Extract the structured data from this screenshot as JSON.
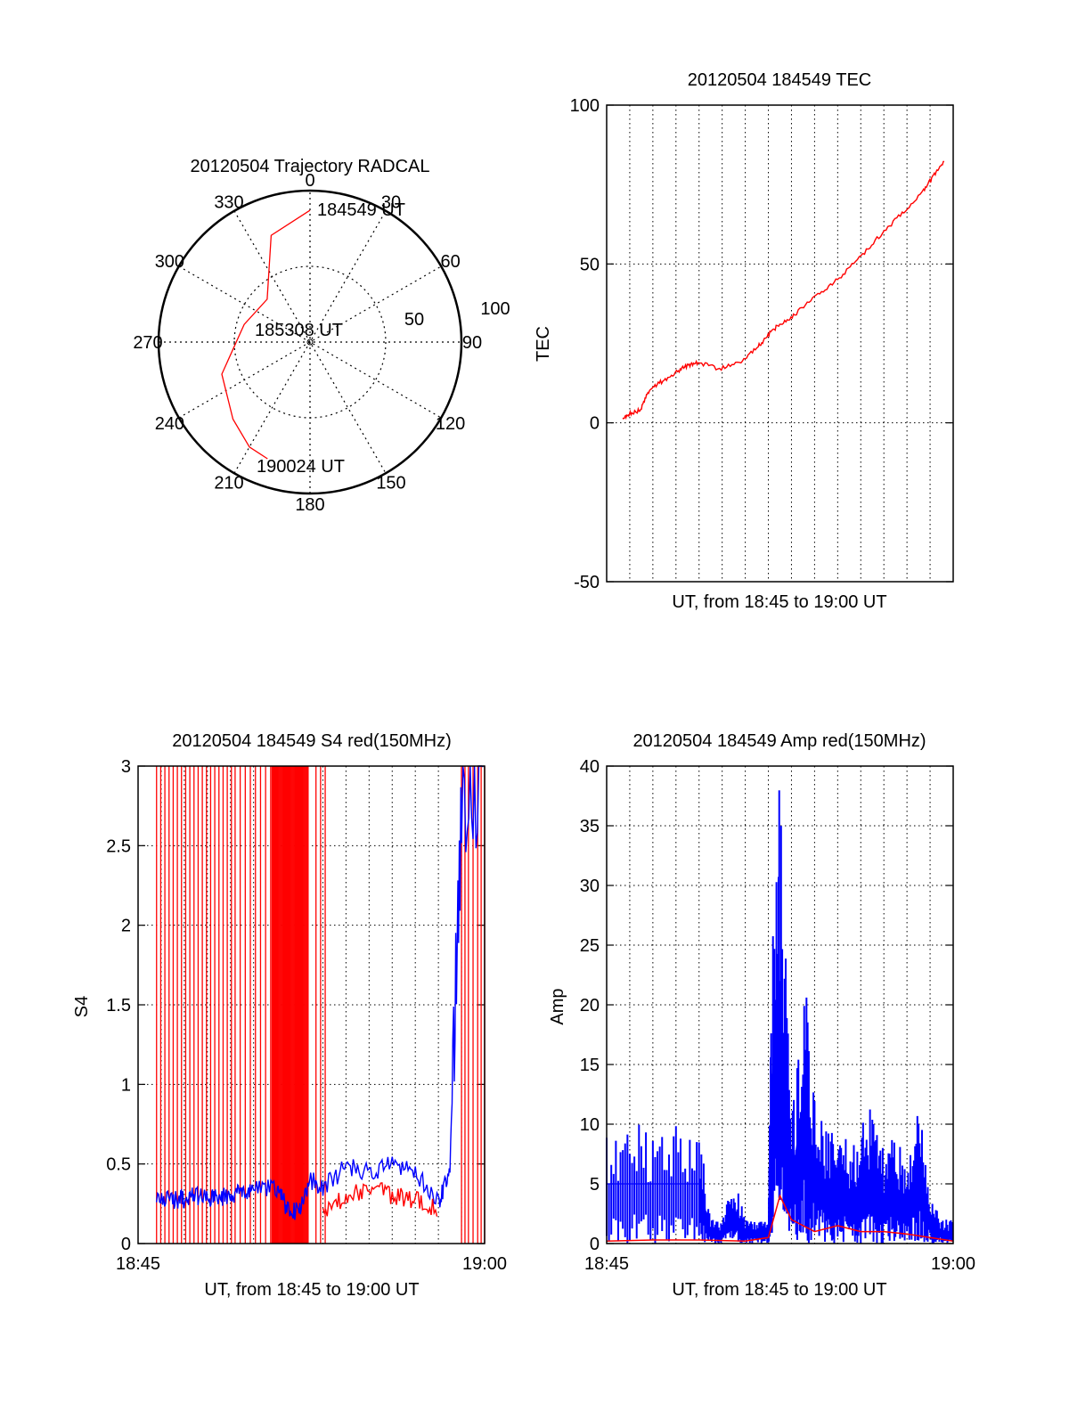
{
  "chart_data": [
    {
      "type": "polar",
      "title": "20120504 Trajectory RADCAL",
      "angle_labels": [
        "0",
        "30",
        "60",
        "90",
        "120",
        "150",
        "180",
        "210",
        "240",
        "270",
        "300",
        "330"
      ],
      "radius_labels": [
        "50",
        "100"
      ],
      "rlim": [
        0,
        100
      ],
      "grid": true,
      "trajectory": {
        "color": "#ff0000",
        "points": [
          [
            0,
            87
          ],
          [
            -20,
            75
          ],
          [
            -45,
            40
          ],
          [
            -75,
            45
          ],
          [
            -110,
            62
          ],
          [
            -135,
            72
          ],
          [
            -150,
            80
          ],
          [
            -160,
            82
          ]
        ]
      },
      "annotations": [
        {
          "text": "184549 UT",
          "azimuth": 0,
          "radius": 87
        },
        {
          "text": "185308 UT",
          "azimuth": 0,
          "radius": 0
        },
        {
          "text": "190024 UT",
          "azimuth": -160,
          "radius": 82
        }
      ]
    },
    {
      "type": "line",
      "title": "20120504 184549 TEC",
      "xlabel": "UT, from 18:45 to 19:00 UT",
      "ylabel": "TEC",
      "ylim": [
        -50,
        100
      ],
      "yticks": [
        "-50",
        "0",
        "50",
        "100"
      ],
      "xlim": [
        0,
        15
      ],
      "grid": true,
      "series": [
        {
          "color": "#ff0000",
          "x": [
            0,
            0.3,
            0.8,
            1.2,
            1.8,
            2.5,
            3.0,
            3.5,
            4.5,
            5.5,
            6.3,
            6.8,
            7.3,
            8.0,
            9.0,
            10.0,
            11.0,
            12.0,
            13.0,
            14.0,
            14.5,
            15.0
          ],
          "y": [
            1,
            3,
            4,
            10,
            13,
            16,
            18,
            19,
            17,
            19,
            24,
            28,
            31,
            34,
            40,
            45,
            52,
            59,
            66,
            73,
            78,
            83
          ]
        }
      ]
    },
    {
      "type": "line",
      "title": "20120504 184549 S4 red(150MHz)",
      "xlabel": "UT, from 18:45 to 19:00 UT",
      "ylabel": "S4",
      "ylim": [
        0,
        3
      ],
      "yticks": [
        "0",
        "0.5",
        "1",
        "1.5",
        "2",
        "2.5",
        "3"
      ],
      "xticks": [
        "18:45",
        "19:00"
      ],
      "xlim": [
        0,
        15
      ],
      "grid": true,
      "series": [
        {
          "color": "#0000ff",
          "x": [
            0.8,
            1.5,
            2.0,
            2.5,
            3.0,
            3.5,
            4.0,
            4.5,
            5.0,
            6.0,
            6.5,
            7.0,
            7.5,
            8.0,
            9.0,
            10.0,
            11.0,
            12.0,
            13.0,
            13.5,
            14.0,
            15.0
          ],
          "y": [
            0.28,
            0.27,
            0.28,
            0.3,
            0.28,
            0.29,
            0.3,
            0.32,
            0.34,
            0.35,
            0.2,
            0.2,
            0.4,
            0.35,
            0.48,
            0.45,
            0.5,
            0.45,
            0.25,
            0.45,
            2.8,
            2.9
          ]
        },
        {
          "color": "#ff0000",
          "x": [
            8.0,
            9.0,
            10.0,
            11.0,
            12.0,
            13.0
          ],
          "y": [
            0.2,
            0.3,
            0.35,
            0.3,
            0.28,
            0.22
          ]
        }
      ]
    },
    {
      "type": "line",
      "title": "20120504 184549 Amp red(150MHz)",
      "xlabel": "UT, from 18:45 to 19:00 UT",
      "ylabel": "Amp",
      "ylim": [
        0,
        40
      ],
      "yticks": [
        "0",
        "5",
        "10",
        "15",
        "20",
        "25",
        "30",
        "35",
        "40"
      ],
      "xticks": [
        "18:45",
        "19:00"
      ],
      "xlim": [
        0,
        15
      ],
      "grid": true,
      "series": [
        {
          "color": "#0000ff",
          "x": [
            0,
            1.0,
            2.0,
            3.0,
            4.0,
            4.5,
            5.0,
            5.5,
            6.0,
            6.5,
            7.0,
            7.2,
            7.5,
            8.0,
            8.5,
            9.0,
            9.5,
            10.0,
            10.5,
            11.0,
            11.5,
            12.0,
            12.5,
            13.0,
            13.5,
            14.0,
            14.5,
            15.0
          ],
          "y": [
            5,
            5,
            5,
            5,
            5,
            1,
            1,
            3,
            1,
            1,
            1,
            15,
            20,
            5,
            12,
            7,
            5,
            6,
            4,
            5,
            6,
            4,
            5,
            3,
            6,
            2,
            1,
            1
          ]
        },
        {
          "color": "#ff0000",
          "x": [
            0,
            2.0,
            4.0,
            6.0,
            7.0,
            7.5,
            8.0,
            9.0,
            10.0,
            11.0,
            12.0,
            13.0,
            14.0,
            15.0
          ],
          "y": [
            0.2,
            0.3,
            0.3,
            0.2,
            0.5,
            4,
            2,
            1,
            1.5,
            1,
            1,
            0.8,
            0.5,
            0.2
          ]
        }
      ]
    }
  ]
}
